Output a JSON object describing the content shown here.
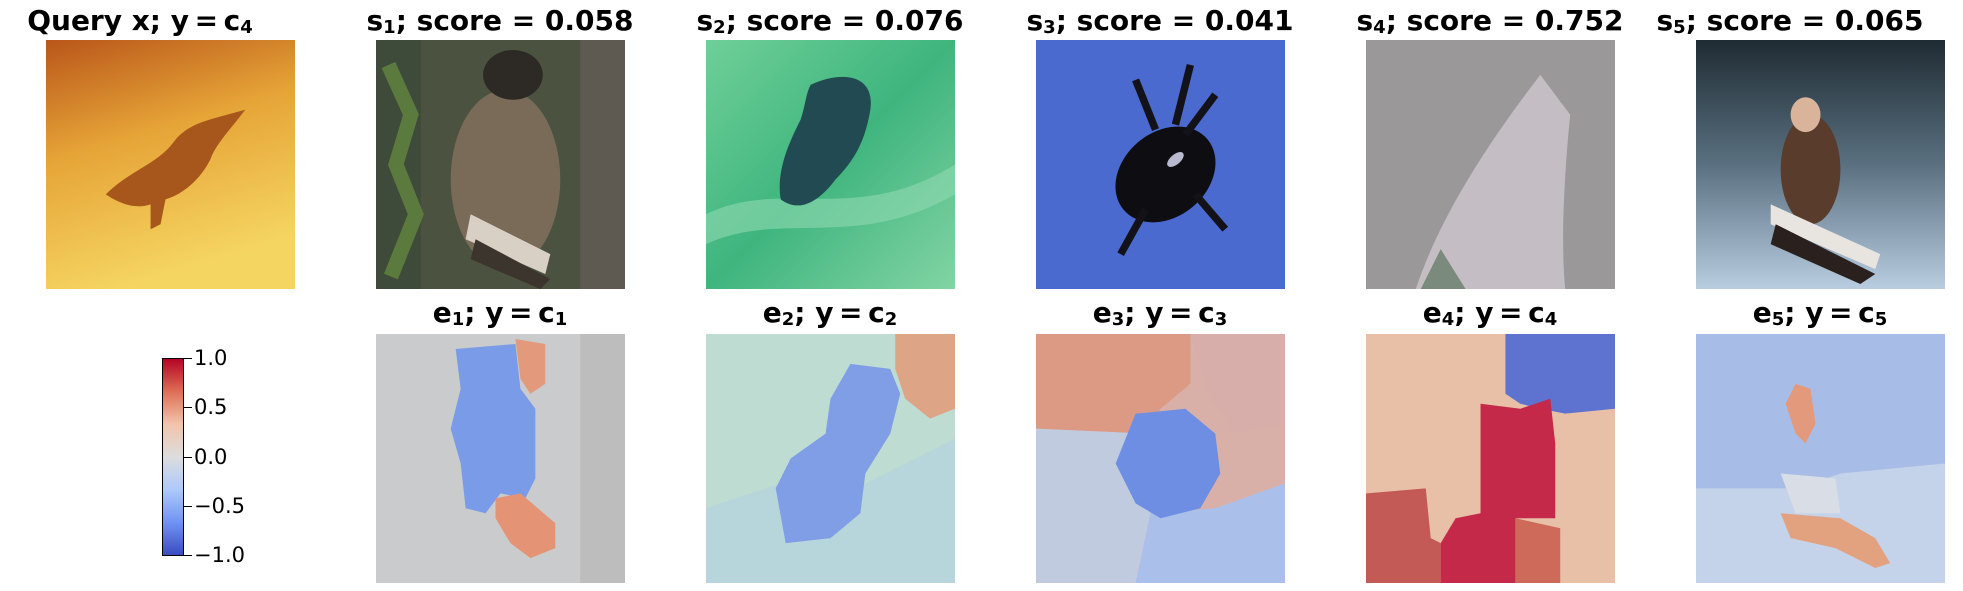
{
  "query": {
    "title_main": "Query x; y = c",
    "title_sub": "4"
  },
  "samples": [
    {
      "sym": "s",
      "idx": "1",
      "rest": "; score = 0.058"
    },
    {
      "sym": "s",
      "idx": "2",
      "rest": "; score = 0.076"
    },
    {
      "sym": "s",
      "idx": "3",
      "rest": "; score = 0.041"
    },
    {
      "sym": "s",
      "idx": "4",
      "rest": "; score = 0.752"
    },
    {
      "sym": "s",
      "idx": "5",
      "rest": "; score = 0.065"
    }
  ],
  "explanations": [
    {
      "sym": "e",
      "idx": "1",
      "mid": "; y = c",
      "csub": "1"
    },
    {
      "sym": "e",
      "idx": "2",
      "mid": "; y = c",
      "csub": "2"
    },
    {
      "sym": "e",
      "idx": "3",
      "mid": "; y = c",
      "csub": "3"
    },
    {
      "sym": "e",
      "idx": "4",
      "mid": "; y = c",
      "csub": "4"
    },
    {
      "sym": "e",
      "idx": "5",
      "mid": "; y = c",
      "csub": "5"
    }
  ],
  "colorbar": {
    "ticks": [
      "1.0",
      "0.5",
      "0.0",
      "−0.5",
      "−1.0"
    ],
    "colormap": [
      "#b40426",
      "#dd6f55",
      "#f3c4ac",
      "#dcdddd",
      "#aec9fc",
      "#7093f3",
      "#3b4cc0"
    ]
  }
}
